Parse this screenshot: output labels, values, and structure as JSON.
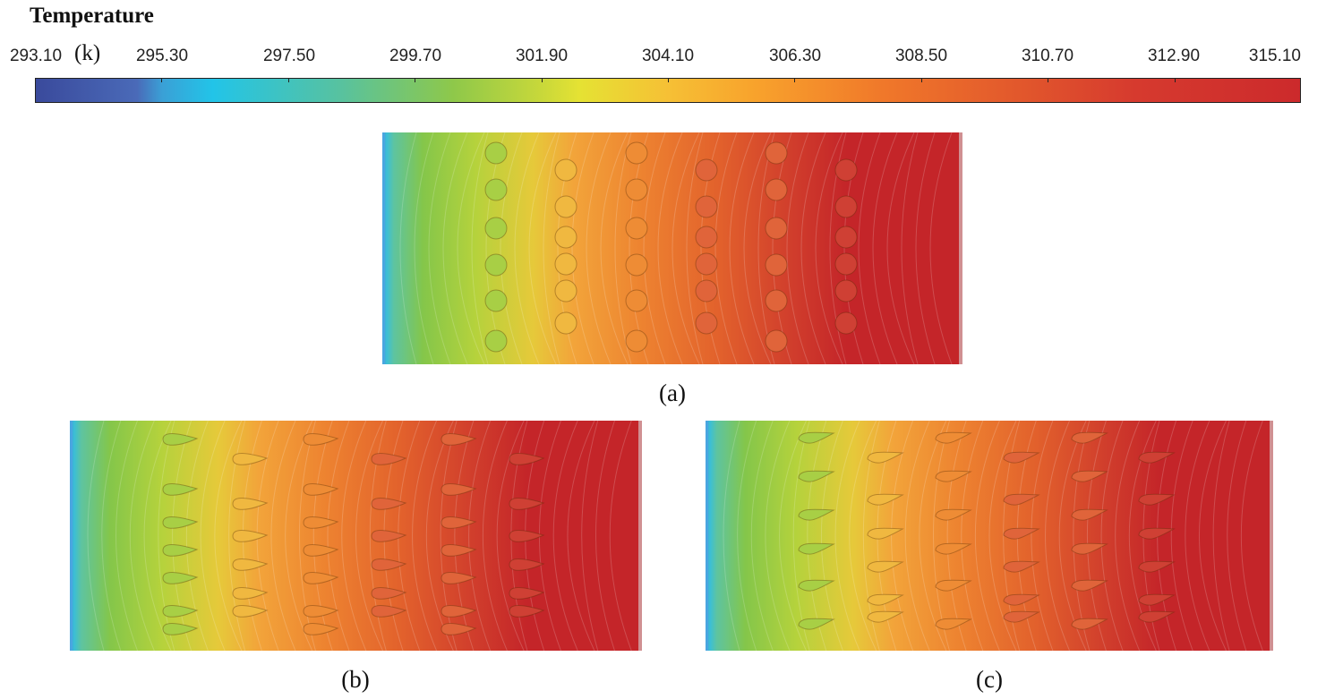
{
  "legend": {
    "title": "Temperature",
    "unit": "(k)",
    "ticks": [
      "293.10",
      "295.30",
      "297.50",
      "299.70",
      "301.90",
      "304.10",
      "306.30",
      "308.50",
      "310.70",
      "312.90",
      "315.10"
    ],
    "min": 293.1,
    "max": 315.1
  },
  "panels": {
    "a": {
      "caption": "(a)",
      "fin_shape": "circle"
    },
    "b": {
      "caption": "(b)",
      "fin_shape": "teardrop"
    },
    "c": {
      "caption": "(c)",
      "fin_shape": "curved-teardrop"
    }
  },
  "colors": {
    "cold": "#3aa0d6",
    "mid": "#9acb3e",
    "warm": "#ef8a2c",
    "hot": "#c42529"
  }
}
